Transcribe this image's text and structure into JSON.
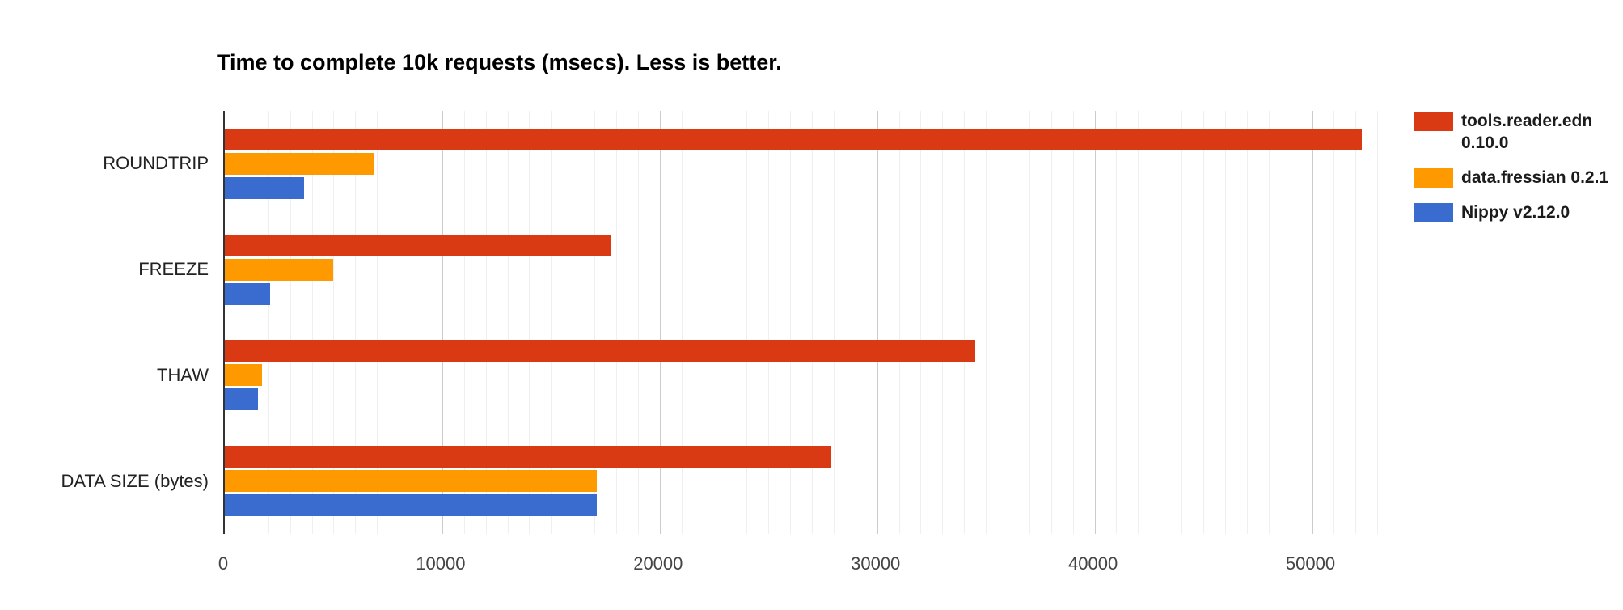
{
  "chart_data": {
    "type": "bar",
    "orientation": "horizontal",
    "title": "Time to complete 10k requests (msecs). Less is better.",
    "categories": [
      "ROUNDTRIP",
      "FREEZE",
      "THAW",
      "DATA SIZE (bytes)"
    ],
    "series": [
      {
        "name": "tools.reader.edn 0.10.0",
        "color": "#da3a13",
        "values": [
          52300,
          17790,
          34500,
          27900
        ]
      },
      {
        "name": "data.fressian 0.2.1",
        "color": "#ff9900",
        "values": [
          6870,
          5000,
          1720,
          17100
        ]
      },
      {
        "name": "Nippy v2.12.0",
        "color": "#3a6bce",
        "values": [
          3660,
          2090,
          1530,
          17100
        ]
      }
    ],
    "x_axis": {
      "ticks": [
        0,
        10000,
        20000,
        30000,
        40000,
        50000
      ],
      "tick_labels": [
        "0",
        "10000",
        "20000",
        "30000",
        "40000",
        "50000"
      ],
      "max": 53700,
      "minor_gridline_step": 1000,
      "major_gridline_step": 10000
    },
    "xlabel": "",
    "ylabel": "",
    "grid": true,
    "legend_position": "right",
    "colors": {
      "background": "#ffffff",
      "axis_line": "#333333",
      "major_grid": "#cccccc",
      "minor_grid": "#f0f0f0"
    }
  }
}
